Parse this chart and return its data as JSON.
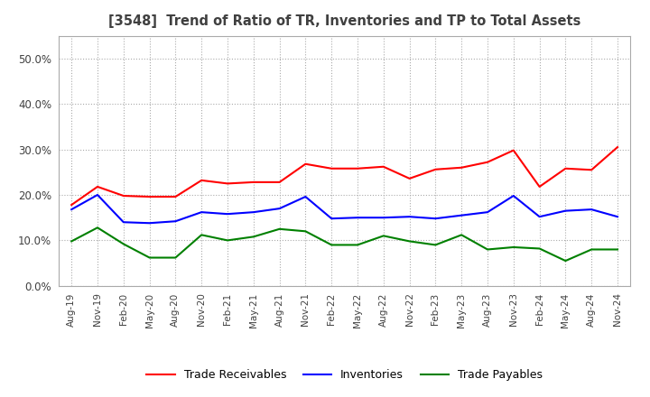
{
  "title": "[3548]  Trend of Ratio of TR, Inventories and TP to Total Assets",
  "ylim": [
    0.0,
    0.55
  ],
  "yticks": [
    0.0,
    0.1,
    0.2,
    0.3,
    0.4,
    0.5
  ],
  "ytick_labels": [
    "0.0%",
    "10.0%",
    "20.0%",
    "30.0%",
    "40.0%",
    "50.0%"
  ],
  "dates": [
    "Aug-19",
    "Nov-19",
    "Feb-20",
    "May-20",
    "Aug-20",
    "Nov-20",
    "Feb-21",
    "May-21",
    "Aug-21",
    "Nov-21",
    "Feb-22",
    "May-22",
    "Aug-22",
    "Nov-22",
    "Feb-23",
    "May-23",
    "Aug-23",
    "Nov-23",
    "Feb-24",
    "May-24",
    "Aug-24",
    "Nov-24"
  ],
  "trade_receivables": [
    0.178,
    0.218,
    0.198,
    0.196,
    0.196,
    0.232,
    0.225,
    0.228,
    0.228,
    0.268,
    0.258,
    0.258,
    0.262,
    0.236,
    0.256,
    0.26,
    0.272,
    0.298,
    0.218,
    0.258,
    0.255,
    0.305
  ],
  "inventories": [
    0.168,
    0.2,
    0.14,
    0.138,
    0.142,
    0.162,
    0.158,
    0.162,
    0.17,
    0.196,
    0.148,
    0.15,
    0.15,
    0.152,
    0.148,
    0.155,
    0.162,
    0.198,
    0.152,
    0.165,
    0.168,
    0.152
  ],
  "trade_payables": [
    0.098,
    0.128,
    0.092,
    0.062,
    0.062,
    0.112,
    0.1,
    0.108,
    0.125,
    0.12,
    0.09,
    0.09,
    0.11,
    0.098,
    0.09,
    0.112,
    0.08,
    0.085,
    0.082,
    0.055,
    0.08,
    0.08
  ],
  "tr_color": "#FF0000",
  "inv_color": "#0000FF",
  "tp_color": "#008000",
  "line_width": 1.5,
  "background_color": "#FFFFFF",
  "grid_color": "#AAAAAA",
  "legend_labels": [
    "Trade Receivables",
    "Inventories",
    "Trade Payables"
  ],
  "title_color": "#404040",
  "tick_color": "#404040"
}
